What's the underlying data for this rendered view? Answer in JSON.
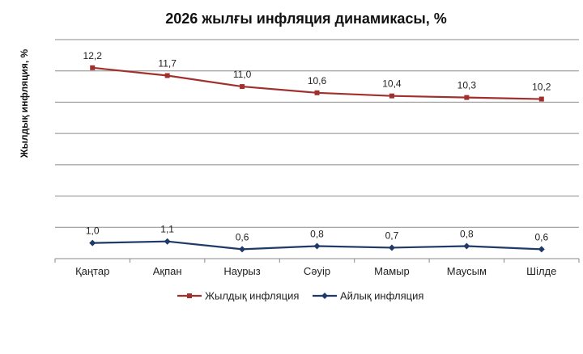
{
  "chart_data": {
    "type": "line",
    "title": "2026 жылғы инфляция динамикасы, %",
    "xlabel": "",
    "ylabel": "Жылдық инфляция, %",
    "categories": [
      "Қаңтар",
      "Ақпан",
      "Наурыз",
      "Сәуір",
      "Мамыр",
      "Маусым",
      "Шілде"
    ],
    "series": [
      {
        "name": "Жылдық инфляция",
        "color": "#A0302E",
        "marker": "square",
        "values": [
          12.2,
          11.7,
          11.0,
          10.6,
          10.4,
          10.3,
          10.2
        ],
        "labels": [
          "12,2",
          "11,7",
          "11,0",
          "10,6",
          "10,4",
          "10,3",
          "10,2"
        ]
      },
      {
        "name": "Айлық инфляция",
        "color": "#1F3A68",
        "marker": "diamond",
        "values": [
          1.0,
          1.1,
          0.6,
          0.8,
          0.7,
          0.8,
          0.6
        ],
        "labels": [
          "1,0",
          "1,1",
          "0,6",
          "0,8",
          "0,7",
          "0,8",
          "0,6"
        ]
      }
    ],
    "ylim": [
      0,
      14
    ],
    "grid": true,
    "y_tick_labels_shown": false,
    "legend_position": "bottom"
  }
}
